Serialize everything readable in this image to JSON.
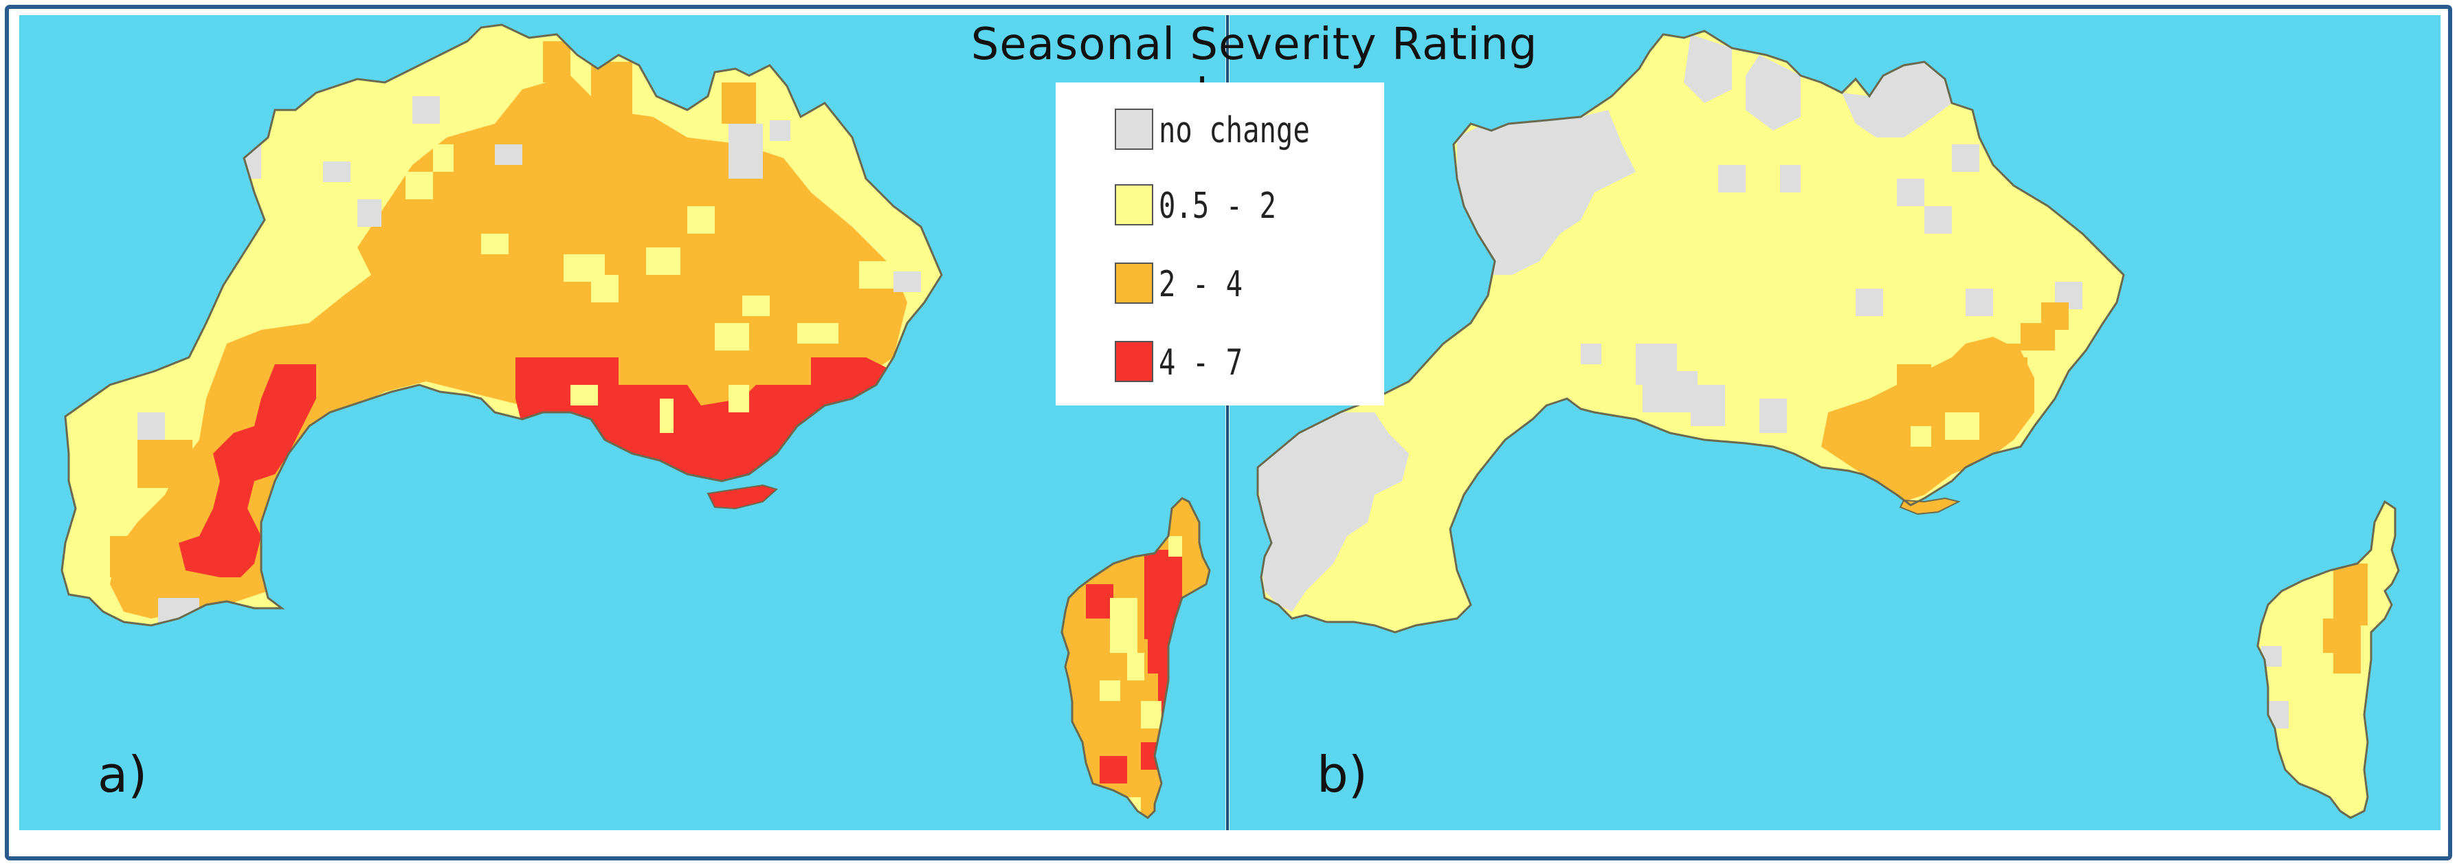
{
  "title": "Seasonal Severity Rating change",
  "panels": [
    {
      "label": "a)",
      "scenario": "panel-a"
    },
    {
      "label": "b)",
      "scenario": "panel-b"
    }
  ],
  "legend": {
    "items": [
      {
        "label": "no change",
        "color": "#dedede"
      },
      {
        "label": "0.5 - 2",
        "color": "#fdfd8c"
      },
      {
        "label": "2 - 4",
        "color": "#fcb934"
      },
      {
        "label": "4 - 7",
        "color": "#f5352d"
      }
    ]
  },
  "colors": {
    "sea": "#5cd6ee",
    "outer_frame": "#2a5b8e",
    "divider": "#1f4e7a",
    "coast": "#6a6a50"
  }
}
